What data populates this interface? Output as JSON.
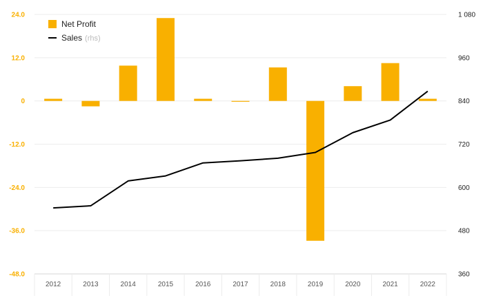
{
  "chart_data": {
    "type": "bar",
    "categories": [
      "2012",
      "2013",
      "2014",
      "2015",
      "2016",
      "2017",
      "2018",
      "2019",
      "2020",
      "2021",
      "2022"
    ],
    "series": [
      {
        "name": "Net Profit",
        "type": "bar",
        "axis": "left",
        "color": "#f9b000",
        "values": [
          0.6,
          -1.5,
          9.8,
          23.0,
          0.6,
          -0.2,
          9.3,
          -38.8,
          4.1,
          10.5,
          0.6
        ]
      },
      {
        "name": "Sales",
        "legend_suffix": "(rhs)",
        "type": "line",
        "axis": "right",
        "color": "#000000",
        "values": [
          543,
          549,
          618,
          632,
          668,
          674,
          681,
          697,
          752,
          787,
          867
        ]
      }
    ],
    "y_left": {
      "ylim": [
        -48,
        24
      ],
      "ticks": [
        "24.0",
        "12.0",
        "0",
        "-12.0",
        "-24.0",
        "-36.0",
        "-48.0"
      ],
      "tick_color": "#f9b000"
    },
    "y_right": {
      "ylim": [
        360,
        1080
      ],
      "ticks": [
        "1 080",
        "960",
        "840",
        "720",
        "600",
        "480",
        "360"
      ]
    },
    "grid": true,
    "legend": "top-left"
  }
}
